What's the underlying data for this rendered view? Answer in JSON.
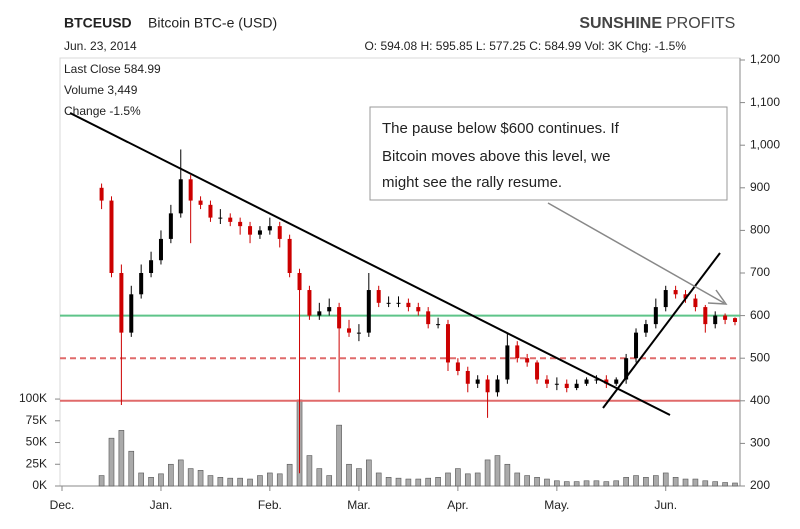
{
  "chart_data": {
    "type": "candlestick",
    "symbol": "BTCEUSD",
    "name": "Bitcoin BTC-e (USD)",
    "logo_bold": "SUNSHINE",
    "logo_light": "PROFITS",
    "date": "Jun. 23, 2014",
    "ohlc_line": "O: 594.08 H: 595.85 L: 577.25 C: 584.99 Vol: 3K Chg: -1.5%",
    "info": [
      "Last Close 584.99",
      "Volume 3,449",
      "Change -1.5%"
    ],
    "annotation": [
      "The pause below $600 continues. If",
      "Bitcoin moves above this level, we",
      "might see the rally resume."
    ],
    "categories": [
      "Dec.",
      null,
      null,
      null,
      null,
      null,
      null,
      null,
      null,
      null,
      "Jan.",
      null,
      null,
      null,
      null,
      null,
      null,
      null,
      null,
      null,
      null,
      "Feb.",
      null,
      null,
      null,
      null,
      null,
      null,
      null,
      null,
      "Mar.",
      null,
      null,
      null,
      null,
      null,
      null,
      null,
      null,
      null,
      "Apr.",
      null,
      null,
      null,
      null,
      null,
      null,
      null,
      null,
      null,
      "May.",
      null,
      null,
      null,
      null,
      null,
      null,
      null,
      null,
      null,
      null,
      "Jun.",
      null,
      null,
      null,
      null,
      null,
      null,
      null
    ],
    "open": [
      null,
      null,
      null,
      null,
      900,
      870,
      700,
      560,
      650,
      700,
      730,
      780,
      840,
      920,
      870,
      860,
      830,
      830,
      820,
      810,
      790,
      800,
      810,
      780,
      700,
      660,
      600,
      610,
      620,
      570,
      560,
      560,
      660,
      630,
      630,
      630,
      620,
      610,
      580,
      580,
      490,
      470,
      440,
      450,
      420,
      450,
      530,
      500,
      490,
      450,
      440,
      440,
      430,
      440,
      450,
      450,
      440,
      450,
      500,
      560,
      580,
      620,
      660,
      650,
      640,
      620,
      580,
      600,
      594.08
    ],
    "high": [
      null,
      null,
      null,
      null,
      910,
      880,
      720,
      670,
      720,
      750,
      800,
      860,
      990,
      930,
      880,
      870,
      850,
      840,
      830,
      820,
      810,
      830,
      820,
      790,
      710,
      670,
      630,
      640,
      630,
      590,
      580,
      700,
      670,
      645,
      645,
      640,
      630,
      620,
      595,
      590,
      500,
      480,
      460,
      460,
      460,
      560,
      540,
      510,
      495,
      460,
      455,
      450,
      450,
      455,
      460,
      460,
      455,
      510,
      570,
      590,
      640,
      670,
      670,
      660,
      650,
      625,
      610,
      605,
      595.85
    ],
    "low": [
      null,
      null,
      null,
      null,
      850,
      690,
      390,
      550,
      640,
      690,
      720,
      770,
      830,
      770,
      850,
      820,
      815,
      810,
      790,
      770,
      780,
      790,
      760,
      690,
      230,
      590,
      590,
      600,
      420,
      550,
      540,
      550,
      620,
      620,
      620,
      610,
      600,
      570,
      570,
      470,
      460,
      420,
      430,
      360,
      410,
      440,
      490,
      480,
      440,
      430,
      425,
      420,
      425,
      435,
      440,
      430,
      435,
      440,
      490,
      550,
      570,
      610,
      640,
      630,
      610,
      560,
      570,
      580,
      577.25
    ],
    "close": [
      null,
      null,
      null,
      null,
      870,
      700,
      560,
      650,
      700,
      730,
      780,
      840,
      920,
      870,
      860,
      830,
      830,
      820,
      810,
      790,
      800,
      810,
      780,
      700,
      660,
      600,
      610,
      620,
      570,
      560,
      560,
      660,
      630,
      630,
      630,
      620,
      610,
      580,
      580,
      490,
      470,
      440,
      450,
      420,
      450,
      530,
      500,
      490,
      450,
      440,
      440,
      430,
      440,
      450,
      450,
      440,
      450,
      500,
      560,
      580,
      620,
      660,
      650,
      640,
      620,
      580,
      600,
      590,
      584.99
    ],
    "volume": [
      null,
      null,
      null,
      null,
      12000,
      55000,
      64000,
      40000,
      15000,
      10000,
      14000,
      25000,
      30000,
      20000,
      18000,
      12000,
      10000,
      9000,
      9000,
      8000,
      12000,
      15000,
      14000,
      25000,
      99000,
      35000,
      20000,
      12000,
      70000,
      25000,
      20000,
      30000,
      15000,
      10000,
      9000,
      8000,
      8000,
      9000,
      10000,
      15000,
      20000,
      14000,
      15000,
      30000,
      35000,
      25000,
      15000,
      12000,
      10000,
      8000,
      6000,
      5000,
      5000,
      6000,
      6000,
      5000,
      6000,
      10000,
      12000,
      10000,
      12000,
      15000,
      10000,
      8000,
      8000,
      6000,
      5000,
      4000,
      3449
    ],
    "up_color": "#000000",
    "down_color": "#cc0000",
    "volume_color": "#aaaaaa",
    "ylim": [
      200,
      1200
    ],
    "yticks": [
      200,
      300,
      400,
      500,
      600,
      700,
      800,
      900,
      {
        "value": 1000,
        "label": "1,000"
      },
      {
        "value": 1100,
        "label": "1,100"
      },
      {
        "value": 1200,
        "label": "1,200"
      }
    ],
    "y2lim": [
      0,
      490000
    ],
    "y2ticks": [
      {
        "value": 0,
        "label": "0K"
      },
      {
        "value": 25000,
        "label": "25K"
      },
      {
        "value": 50000,
        "label": "50K"
      },
      {
        "value": 75000,
        "label": "75K"
      },
      {
        "value": 100000,
        "label": "100K"
      }
    ],
    "levels": [
      {
        "value": 600,
        "color": "#5ec489",
        "style": "solid"
      },
      {
        "value": 500,
        "color": "#e06a6a",
        "style": "dashed"
      },
      {
        "value": 400,
        "color": "#e06a6a",
        "style": "solid"
      }
    ]
  }
}
